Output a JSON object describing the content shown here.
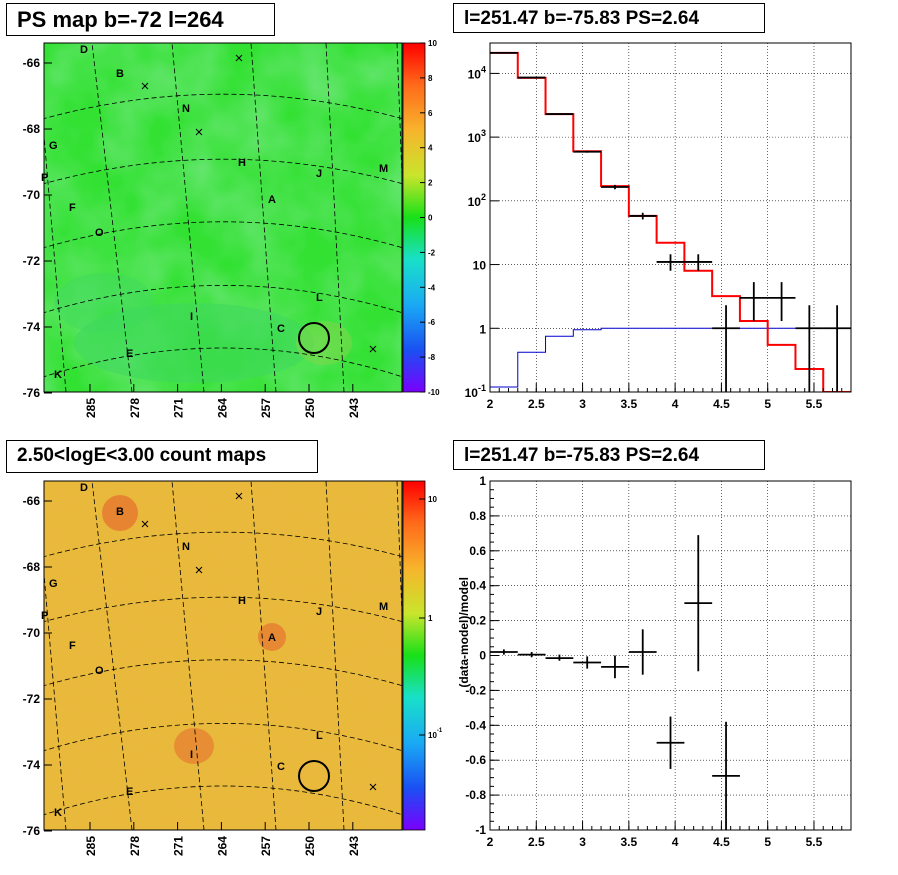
{
  "panels": {
    "ps_map_title": "PS map b=-72 l=264",
    "spectrum_title": "l=251.47 b=-75.83 PS=2.64",
    "count_map_title": "2.50<logE<3.00 count maps",
    "residual_title": "l=251.47 b=-75.83 PS=2.64"
  },
  "map_axes": {
    "lat_ticks": [
      "-66",
      "-68",
      "-70",
      "-72",
      "-74",
      "-76"
    ],
    "lon_ticks": [
      "285",
      "278",
      "271",
      "264",
      "257",
      "250",
      "243"
    ]
  },
  "sources": [
    "D",
    "B",
    "N",
    "G",
    "H",
    "P",
    "J",
    "M",
    "F",
    "A",
    "O",
    "L",
    "I",
    "C",
    "E",
    "K"
  ],
  "colors": {
    "map_green": "#33e133",
    "count_orange": "#e9b93c",
    "data": "#000000",
    "model": "#ff0000",
    "background": "#0000cc"
  },
  "chart_data": [
    {
      "type": "heatmap",
      "title": "PS map b=-72 l=264",
      "colorbar": {
        "range": [
          -10,
          10
        ],
        "ticks": [
          "10",
          "8",
          "6",
          "4",
          "2",
          "0",
          "-2",
          "-4",
          "-6",
          "-8",
          "-10"
        ]
      }
    },
    {
      "type": "line",
      "title": "l=251.47 b=-75.83 PS=2.64",
      "xlim": [
        2,
        5.9
      ],
      "ylim": [
        0.1,
        30000
      ],
      "ylog": true,
      "x_ticks": [
        "2",
        "2.5",
        "3",
        "3.5",
        "4",
        "4.5",
        "5",
        "5.5"
      ],
      "y_ticks": [
        "10^-1",
        "1",
        "10",
        "10^2",
        "10^3",
        "10^4"
      ],
      "bin_edges": [
        2.0,
        2.3,
        2.6,
        2.9,
        3.2,
        3.5,
        3.8,
        4.1,
        4.4,
        4.7,
        5.0,
        5.3,
        5.6,
        5.9
      ],
      "model_total": [
        21000,
        8500,
        2300,
        600,
        170,
        58,
        22,
        8,
        3.2,
        1.3,
        0.55,
        0.23,
        0.1
      ],
      "model_background": [
        0.12,
        0.42,
        0.75,
        0.95,
        1.0,
        1.0,
        1.0,
        1.0,
        1.0,
        1.0,
        1.0,
        1.0,
        1.0
      ],
      "data_points": [
        {
          "x": 2.15,
          "y": 21000,
          "xerr": 0.15,
          "ylo": 20800,
          "yhi": 21200
        },
        {
          "x": 2.45,
          "y": 8600,
          "xerr": 0.15,
          "ylo": 8500,
          "yhi": 8700
        },
        {
          "x": 2.75,
          "y": 2300,
          "xerr": 0.15,
          "ylo": 2250,
          "yhi": 2350
        },
        {
          "x": 3.05,
          "y": 590,
          "xerr": 0.15,
          "ylo": 570,
          "yhi": 610
        },
        {
          "x": 3.35,
          "y": 165,
          "xerr": 0.15,
          "ylo": 152,
          "yhi": 178
        },
        {
          "x": 3.65,
          "y": 58,
          "xerr": 0.15,
          "ylo": 51,
          "yhi": 65
        },
        {
          "x": 3.95,
          "y": 11,
          "xerr": 0.15,
          "ylo": 8,
          "yhi": 14.5
        },
        {
          "x": 4.25,
          "y": 11,
          "xerr": 0.15,
          "ylo": 8,
          "yhi": 14.5
        },
        {
          "x": 4.55,
          "y": 1,
          "xerr": 0.15,
          "ylo": 0.1,
          "yhi": 2.3
        },
        {
          "x": 4.85,
          "y": 3,
          "xerr": 0.15,
          "ylo": 1.3,
          "yhi": 5.3
        },
        {
          "x": 5.15,
          "y": 3,
          "xerr": 0.15,
          "ylo": 1.3,
          "yhi": 5.3
        },
        {
          "x": 5.45,
          "y": 1,
          "xerr": 0.15,
          "ylo": 0.1,
          "yhi": 2.3
        },
        {
          "x": 5.75,
          "y": 1,
          "xerr": 0.15,
          "ylo": 0.1,
          "yhi": 2.3
        }
      ]
    },
    {
      "type": "heatmap",
      "title": "2.50<logE<3.00 count maps",
      "colorbar": {
        "log": true,
        "ticks": [
          "10",
          "1",
          "10^-1"
        ]
      }
    },
    {
      "type": "scatter",
      "title": "l=251.47 b=-75.83 PS=2.64",
      "ylabel": "(data-model)/model",
      "xlim": [
        2,
        5.9
      ],
      "ylim": [
        -1,
        1
      ],
      "x_ticks": [
        "2",
        "2.5",
        "3",
        "3.5",
        "4",
        "4.5",
        "5",
        "5.5"
      ],
      "y_ticks": [
        "1",
        "0.8",
        "0.6",
        "0.4",
        "0.2",
        "0",
        "-0.2",
        "-0.4",
        "-0.6",
        "-0.8",
        "-1"
      ],
      "points": [
        {
          "x": 2.15,
          "y": 0.02,
          "xerr": 0.15,
          "ylo": 0.005,
          "yhi": 0.035
        },
        {
          "x": 2.45,
          "y": 0.005,
          "xerr": 0.15,
          "ylo": -0.01,
          "yhi": 0.02
        },
        {
          "x": 2.75,
          "y": -0.015,
          "xerr": 0.15,
          "ylo": -0.03,
          "yhi": 0.005
        },
        {
          "x": 3.05,
          "y": -0.04,
          "xerr": 0.15,
          "ylo": -0.075,
          "yhi": -0.005
        },
        {
          "x": 3.35,
          "y": -0.065,
          "xerr": 0.15,
          "ylo": -0.13,
          "yhi": 0.0
        },
        {
          "x": 3.65,
          "y": 0.02,
          "xerr": 0.15,
          "ylo": -0.11,
          "yhi": 0.15
        },
        {
          "x": 3.95,
          "y": -0.5,
          "xerr": 0.15,
          "ylo": -0.65,
          "yhi": -0.35
        },
        {
          "x": 4.25,
          "y": 0.3,
          "xerr": 0.15,
          "ylo": -0.09,
          "yhi": 0.69
        },
        {
          "x": 4.55,
          "y": -0.69,
          "xerr": 0.15,
          "ylo": -1.0,
          "yhi": -0.38
        }
      ]
    }
  ]
}
